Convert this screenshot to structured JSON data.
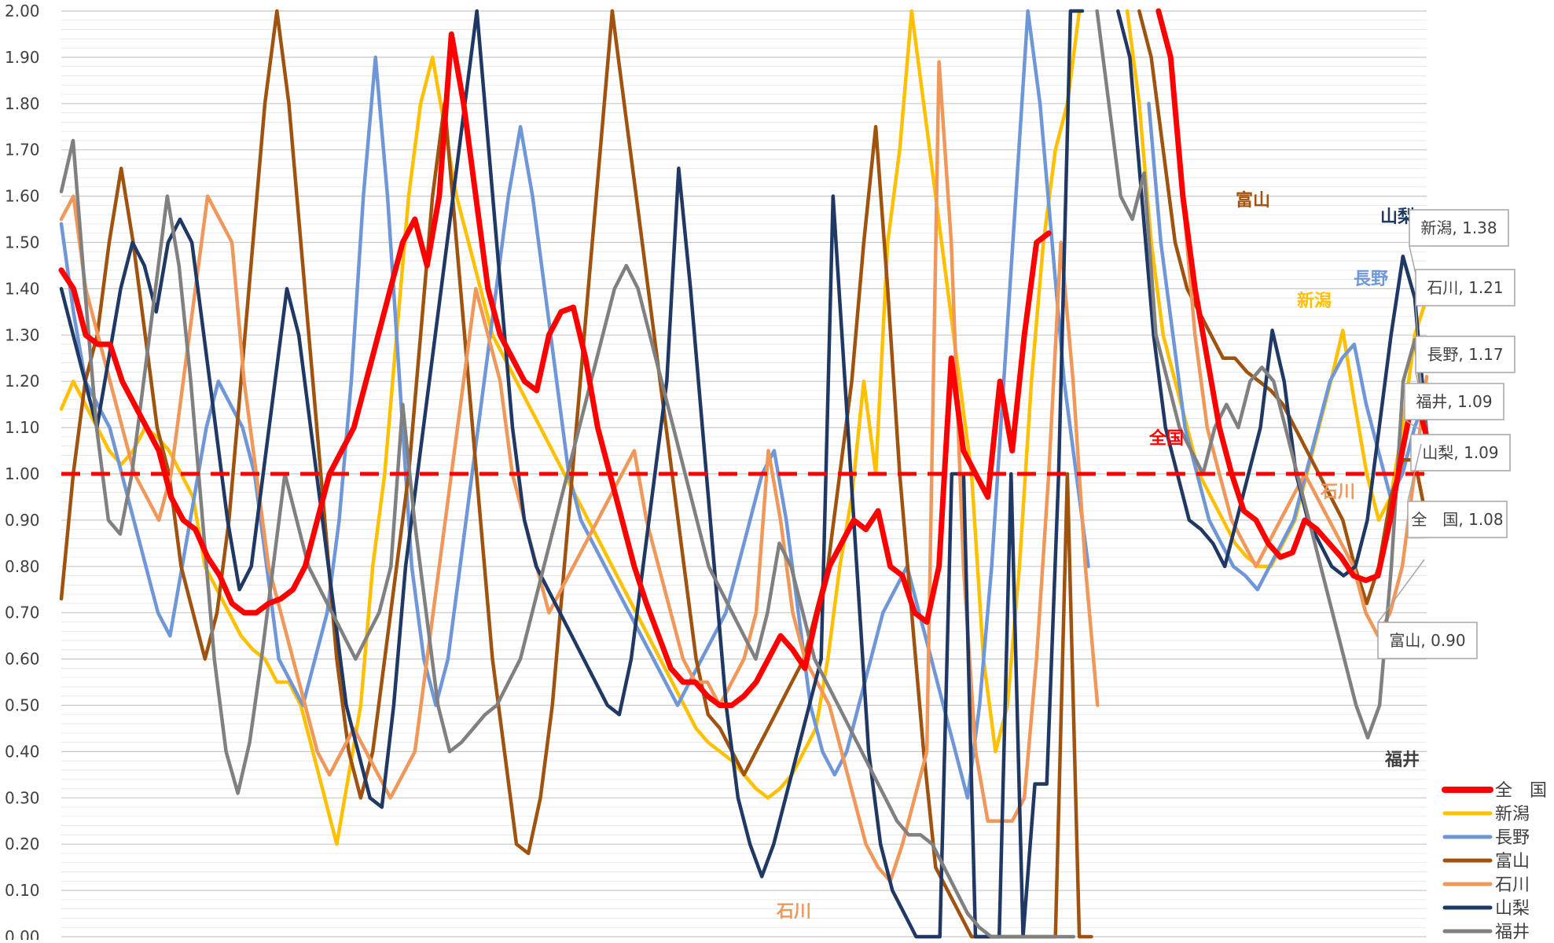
{
  "chart_data": {
    "type": "line",
    "title": "",
    "xlabel": "",
    "ylabel": "",
    "ylim": [
      0,
      2
    ],
    "y_ticks": [
      "0.00",
      "0.10",
      "0.20",
      "0.30",
      "0.40",
      "0.50",
      "0.60",
      "0.70",
      "0.80",
      "0.90",
      "1.00",
      "1.10",
      "1.20",
      "1.30",
      "1.40",
      "1.50",
      "1.60",
      "1.70",
      "1.80",
      "1.90",
      "2.00"
    ],
    "grid": true,
    "legend_position": "bottom-right",
    "reference_line": {
      "value": 1.0,
      "color": "#ff0000",
      "style": "dashed"
    },
    "series": [
      {
        "name": "全　国",
        "color": "#ff0000",
        "values": [
          1.44,
          1.4,
          1.3,
          1.28,
          1.28,
          1.2,
          1.15,
          1.1,
          1.05,
          0.95,
          0.9,
          0.88,
          0.82,
          0.78,
          0.72,
          0.7,
          0.7,
          0.72,
          0.73,
          0.75,
          0.8,
          0.9,
          1.0,
          1.05,
          1.1,
          1.2,
          1.3,
          1.4,
          1.5,
          1.55,
          1.45,
          1.6,
          1.95,
          1.8,
          1.6,
          1.4,
          1.3,
          1.25,
          1.2,
          1.18,
          1.3,
          1.35,
          1.36,
          1.25,
          1.1,
          1.0,
          0.9,
          0.8,
          0.72,
          0.65,
          0.58,
          0.55,
          0.55,
          0.52,
          0.5,
          0.5,
          0.52,
          0.55,
          0.6,
          0.65,
          0.62,
          0.58,
          0.7,
          0.8,
          0.85,
          0.9,
          0.88,
          0.92,
          0.8,
          0.78,
          0.7,
          0.68,
          0.8,
          1.25,
          1.05,
          1.0,
          0.95,
          1.2,
          1.05,
          1.3,
          1.5,
          1.52,
          null,
          null,
          null,
          null,
          null,
          null,
          null,
          null,
          2.0,
          1.9,
          1.6,
          1.4,
          1.25,
          1.1,
          1.0,
          0.92,
          0.9,
          0.85,
          0.82,
          0.83,
          0.9,
          0.88,
          0.85,
          0.82,
          0.78,
          0.77,
          0.78,
          0.9,
          1.05,
          1.18,
          1.08
        ]
      },
      {
        "name": "新潟",
        "color": "#ffc000",
        "values": [
          1.14,
          1.2,
          1.15,
          1.1,
          1.05,
          1.02,
          1.05,
          1.1,
          1.08,
          1.05,
          1.0,
          0.95,
          0.8,
          0.75,
          0.7,
          0.65,
          0.62,
          0.6,
          0.55,
          0.55,
          0.5,
          0.4,
          0.3,
          0.2,
          0.35,
          0.5,
          0.8,
          1.0,
          1.3,
          1.6,
          1.8,
          1.9,
          1.75,
          1.6,
          1.5,
          1.4,
          1.3,
          1.25,
          1.2,
          1.15,
          1.1,
          1.05,
          1.0,
          0.95,
          0.9,
          0.85,
          0.8,
          0.75,
          0.7,
          0.65,
          0.6,
          0.55,
          0.5,
          0.45,
          0.42,
          0.4,
          0.38,
          0.35,
          0.32,
          0.3,
          0.32,
          0.35,
          0.4,
          0.45,
          0.6,
          0.8,
          0.95,
          1.2,
          1.0,
          1.5,
          1.7,
          2.0,
          1.8,
          1.6,
          1.4,
          1.2,
          1.0,
          0.6,
          0.4,
          0.5,
          0.8,
          1.2,
          1.5,
          1.7,
          1.8,
          2.0,
          null,
          null,
          null,
          2.0,
          1.8,
          1.5,
          1.3,
          1.2,
          1.1,
          1.0,
          0.95,
          0.9,
          0.85,
          0.82,
          0.8,
          0.8,
          0.85,
          0.9,
          1.0,
          1.1,
          1.2,
          1.31,
          1.15,
          1.0,
          0.9,
          0.95,
          1.1,
          1.3,
          1.38
        ]
      },
      {
        "name": "長野",
        "color": "#6f97d8",
        "values": [
          1.54,
          1.35,
          1.2,
          1.15,
          1.1,
          1.0,
          0.9,
          0.8,
          0.7,
          0.65,
          0.8,
          0.95,
          1.1,
          1.2,
          1.15,
          1.1,
          1.0,
          0.8,
          0.6,
          0.55,
          0.5,
          0.6,
          0.7,
          0.9,
          1.2,
          1.6,
          1.9,
          1.6,
          1.2,
          0.8,
          0.6,
          0.5,
          0.6,
          0.8,
          1.0,
          1.2,
          1.4,
          1.6,
          1.75,
          1.6,
          1.4,
          1.2,
          1.0,
          0.9,
          0.85,
          0.8,
          0.75,
          0.7,
          0.65,
          0.6,
          0.55,
          0.5,
          0.55,
          0.6,
          0.65,
          0.7,
          0.8,
          0.9,
          1.0,
          1.05,
          0.9,
          0.7,
          0.5,
          0.4,
          0.35,
          0.4,
          0.5,
          0.6,
          0.7,
          0.75,
          0.8,
          0.7,
          0.6,
          0.5,
          0.4,
          0.3,
          0.5,
          0.8,
          1.2,
          1.6,
          2.0,
          1.8,
          1.5,
          1.2,
          1.0,
          0.8,
          null,
          null,
          null,
          null,
          1.8,
          1.5,
          1.3,
          1.1,
          1.0,
          0.9,
          0.85,
          0.8,
          0.78,
          0.75,
          0.8,
          0.85,
          0.9,
          1.0,
          1.1,
          1.2,
          1.25,
          1.28,
          1.15,
          1.05,
          0.95,
          1.0,
          1.1,
          1.17
        ]
      },
      {
        "name": "富山",
        "color": "#a0520f",
        "values": [
          0.73,
          1.0,
          1.2,
          1.3,
          1.5,
          1.66,
          1.5,
          1.3,
          1.1,
          1.0,
          0.8,
          0.7,
          0.6,
          0.7,
          0.9,
          1.2,
          1.5,
          1.8,
          2.0,
          1.8,
          1.5,
          1.2,
          0.9,
          0.6,
          0.4,
          0.3,
          0.4,
          0.6,
          0.8,
          1.0,
          1.3,
          1.6,
          1.8,
          1.5,
          1.2,
          0.9,
          0.6,
          0.4,
          0.2,
          0.18,
          0.3,
          0.5,
          0.8,
          1.1,
          1.4,
          1.7,
          2.0,
          1.8,
          1.6,
          1.4,
          1.2,
          1.0,
          0.8,
          0.6,
          0.48,
          0.45,
          0.4,
          0.35,
          0.4,
          0.45,
          0.5,
          0.55,
          0.6,
          0.7,
          0.8,
          1.0,
          1.2,
          1.5,
          1.75,
          1.4,
          1.0,
          0.7,
          0.4,
          0.15,
          0.1,
          0.05,
          0.0,
          0.0,
          0.0,
          0.0,
          0.0,
          0.0,
          0.0,
          0.0,
          1.0,
          0.0,
          0.0,
          null,
          null,
          null,
          2.0,
          1.9,
          1.7,
          1.5,
          1.4,
          1.35,
          1.3,
          1.25,
          1.25,
          1.22,
          1.2,
          1.18,
          1.15,
          1.1,
          1.05,
          1.0,
          0.95,
          0.9,
          0.8,
          0.72,
          0.8,
          0.95,
          1.03,
          1.03,
          0.9
        ]
      },
      {
        "name": "石川",
        "color": "#f0975a",
        "values": [
          1.55,
          1.6,
          1.4,
          1.3,
          1.2,
          1.1,
          1.0,
          0.95,
          0.9,
          1.0,
          1.2,
          1.4,
          1.6,
          1.55,
          1.5,
          1.2,
          1.0,
          0.8,
          0.7,
          0.6,
          0.5,
          0.4,
          0.35,
          0.4,
          0.45,
          0.4,
          0.35,
          0.3,
          0.35,
          0.4,
          0.6,
          0.8,
          1.0,
          1.2,
          1.4,
          1.3,
          1.2,
          1.0,
          0.9,
          0.8,
          0.7,
          0.75,
          0.8,
          0.85,
          0.9,
          0.95,
          1.0,
          1.05,
          0.9,
          0.8,
          0.7,
          0.6,
          0.55,
          0.55,
          0.5,
          0.55,
          0.6,
          0.7,
          1.05,
          0.9,
          0.7,
          0.6,
          0.55,
          0.5,
          0.4,
          0.3,
          0.2,
          0.15,
          0.12,
          0.2,
          0.3,
          0.4,
          1.89,
          1.5,
          0.8,
          0.4,
          0.25,
          0.25,
          0.25,
          0.3,
          0.6,
          1.0,
          1.5,
          1.2,
          0.8,
          0.5,
          null,
          null,
          null,
          null,
          null,
          null,
          1.6,
          1.3,
          1.1,
          1.0,
          0.9,
          0.85,
          0.8,
          0.85,
          0.9,
          0.95,
          1.0,
          0.95,
          0.9,
          0.85,
          0.8,
          0.7,
          0.65,
          0.7,
          0.8,
          1.0,
          1.21
        ]
      },
      {
        "name": "山梨",
        "color": "#1f3864",
        "values": [
          1.4,
          1.3,
          1.2,
          1.1,
          1.25,
          1.4,
          1.5,
          1.45,
          1.35,
          1.5,
          1.55,
          1.5,
          1.3,
          1.1,
          0.9,
          0.75,
          0.8,
          1.0,
          1.2,
          1.4,
          1.3,
          1.1,
          0.9,
          0.7,
          0.5,
          0.4,
          0.3,
          0.28,
          0.5,
          0.8,
          1.0,
          1.2,
          1.4,
          1.6,
          1.8,
          2.0,
          1.7,
          1.4,
          1.1,
          0.9,
          0.8,
          0.75,
          0.7,
          0.65,
          0.6,
          0.55,
          0.5,
          0.48,
          0.6,
          0.8,
          1.0,
          1.2,
          1.66,
          1.4,
          1.1,
          0.8,
          0.5,
          0.3,
          0.2,
          0.13,
          0.2,
          0.3,
          0.4,
          0.5,
          0.6,
          1.6,
          1.2,
          0.8,
          0.4,
          0.2,
          0.1,
          0.05,
          0.0,
          0.0,
          0.0,
          1.0,
          1.0,
          0.0,
          0.0,
          0.0,
          1.0,
          0.0,
          0.33,
          0.33,
          1.0,
          2.0,
          2.0,
          null,
          null,
          2.0,
          1.9,
          1.6,
          1.3,
          1.1,
          1.0,
          0.9,
          0.88,
          0.85,
          0.8,
          0.9,
          1.0,
          1.1,
          1.31,
          1.2,
          1.0,
          0.9,
          0.85,
          0.8,
          0.78,
          0.8,
          0.9,
          1.1,
          1.3,
          1.47,
          1.38,
          1.09
        ]
      },
      {
        "name": "福井",
        "color": "#808080",
        "values": [
          1.61,
          1.72,
          1.4,
          1.1,
          0.9,
          0.87,
          1.0,
          1.2,
          1.4,
          1.6,
          1.45,
          1.2,
          0.9,
          0.6,
          0.4,
          0.31,
          0.42,
          0.6,
          0.8,
          1.0,
          0.9,
          0.8,
          0.75,
          0.7,
          0.65,
          0.6,
          0.65,
          0.7,
          0.8,
          1.15,
          0.9,
          0.7,
          0.5,
          0.4,
          0.42,
          0.45,
          0.48,
          0.5,
          0.55,
          0.6,
          0.7,
          0.8,
          0.9,
          1.0,
          1.1,
          1.2,
          1.3,
          1.4,
          1.45,
          1.4,
          1.3,
          1.2,
          1.1,
          1.0,
          0.9,
          0.8,
          0.75,
          0.7,
          0.65,
          0.6,
          0.7,
          0.85,
          0.8,
          0.7,
          0.6,
          0.55,
          0.5,
          0.45,
          0.4,
          0.35,
          0.3,
          0.25,
          0.22,
          0.22,
          0.2,
          0.15,
          0.1,
          0.05,
          0.02,
          0.0,
          0.0,
          0.0,
          0.0,
          0.0,
          0.0,
          0.0,
          0.0,
          null,
          2.0,
          1.8,
          1.6,
          1.55,
          1.65,
          1.3,
          1.2,
          1.1,
          1.05,
          1.0,
          1.1,
          1.15,
          1.1,
          1.2,
          1.23,
          1.2,
          1.1,
          1.0,
          0.9,
          0.8,
          0.7,
          0.6,
          0.5,
          0.43,
          0.5,
          0.8,
          1.2,
          1.29,
          1.09
        ]
      }
    ],
    "annotations": {
      "inline": [
        {
          "text": "富山",
          "color": "#a0520f"
        },
        {
          "text": "山梨",
          "color": "#1f3864"
        },
        {
          "text": "長野",
          "color": "#6f97d8"
        },
        {
          "text": "新潟",
          "color": "#ffc000"
        },
        {
          "text": "全国",
          "color": "#ff0000"
        },
        {
          "text": "石川",
          "color": "#f0975a"
        },
        {
          "text": "石川",
          "color": "#f0975a"
        },
        {
          "text": "福井",
          "color": "#404040"
        }
      ],
      "callouts": [
        {
          "text": "新潟, 1.38",
          "value": 1.38
        },
        {
          "text": "石川, 1.21",
          "value": 1.21
        },
        {
          "text": "長野, 1.17",
          "value": 1.17
        },
        {
          "text": "福井, 1.09",
          "value": 1.09
        },
        {
          "text": "山梨, 1.09",
          "value": 1.09
        },
        {
          "text": "全　国, 1.08",
          "value": 1.08
        },
        {
          "text": "富山, 0.90",
          "value": 0.9
        }
      ]
    }
  }
}
